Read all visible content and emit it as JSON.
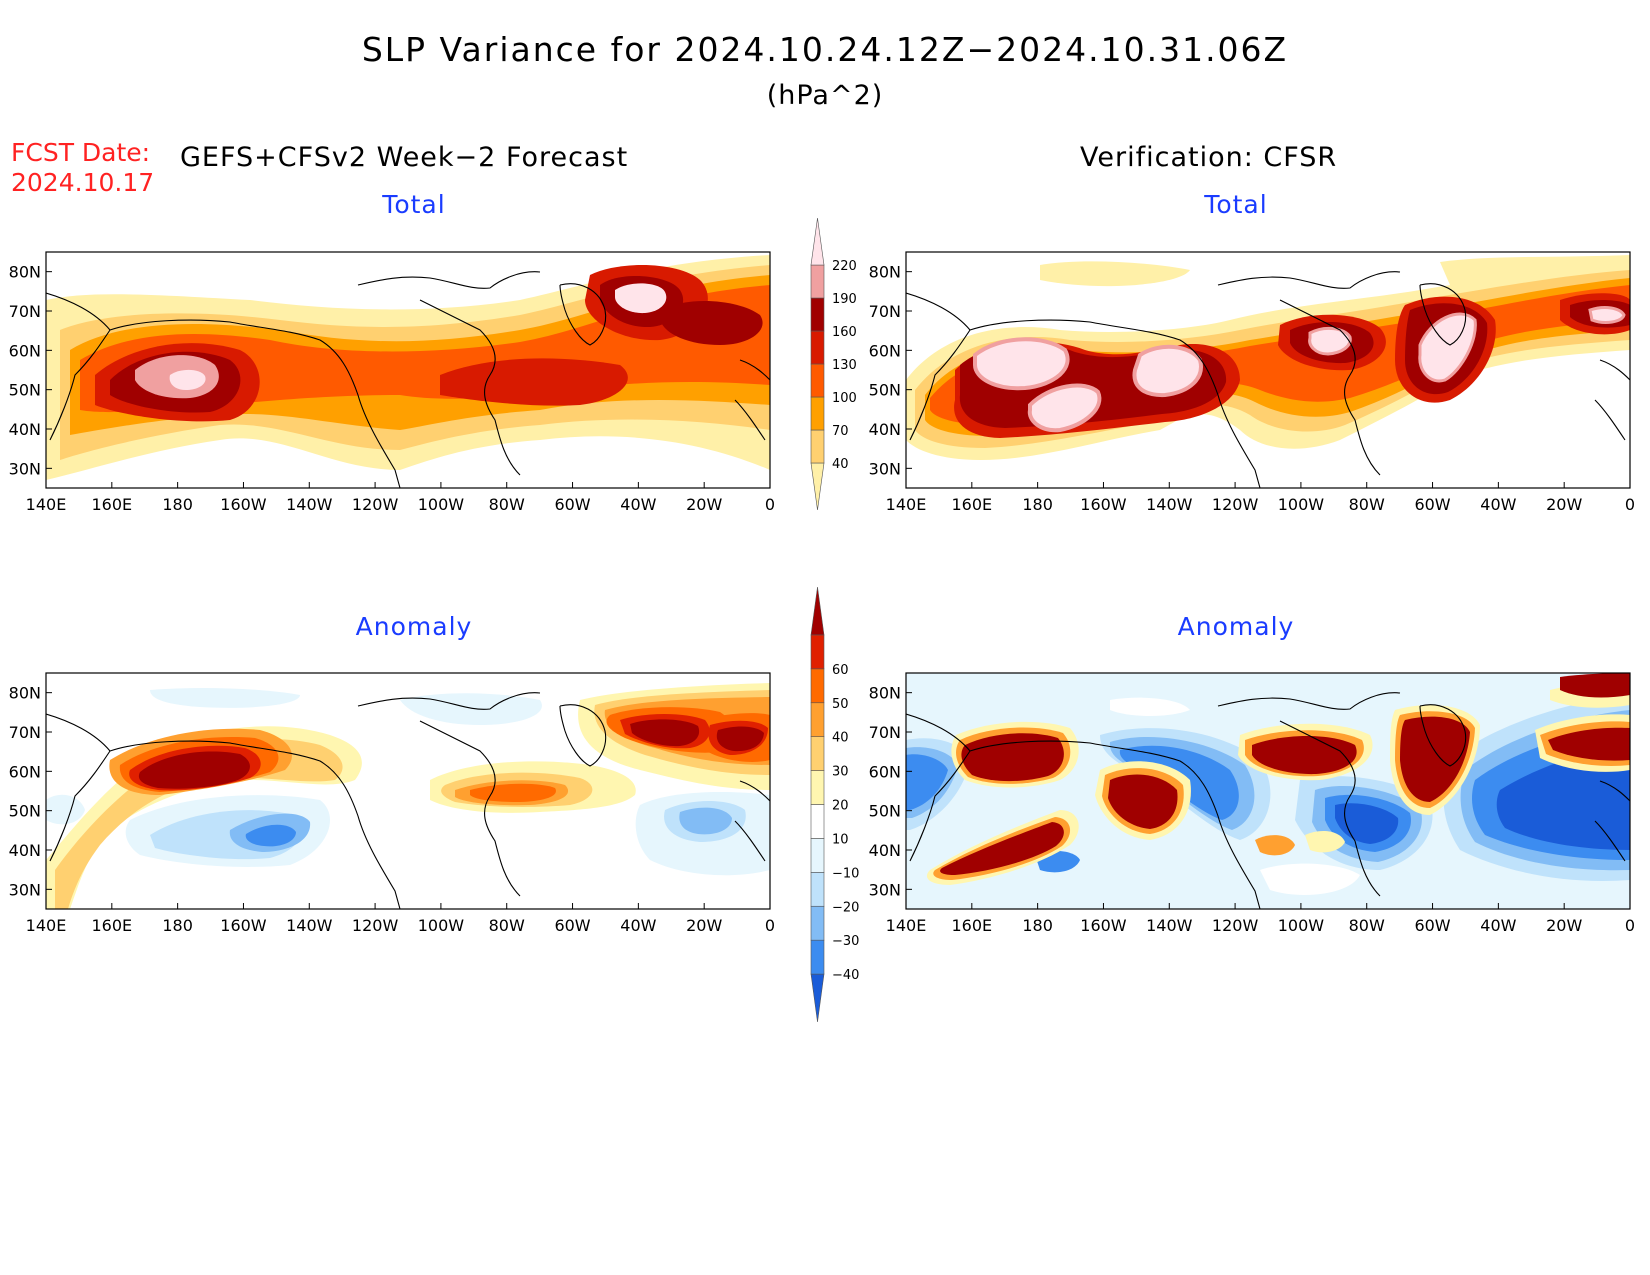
{
  "header": {
    "title": "SLP Variance for 2024.10.24.12Z−2024.10.31.06Z",
    "units": "(hPa^2)",
    "fcst_date_label": "FCST Date:",
    "fcst_date_value": "2024.10.17",
    "forecast_heading": "GEFS+CFSv2 Week−2 Forecast",
    "verification_heading": "Verification: CFSR"
  },
  "panels": {
    "forecast_total_title": "Total",
    "verification_total_title": "Total",
    "forecast_anomaly_title": "Anomaly",
    "verification_anomaly_title": "Anomaly"
  },
  "axes": {
    "lat_labels": [
      "80N",
      "70N",
      "60N",
      "50N",
      "40N",
      "30N"
    ],
    "lon_labels": [
      "140E",
      "160E",
      "180",
      "160W",
      "140W",
      "120W",
      "100W",
      "80W",
      "60W",
      "40W",
      "20W",
      "0"
    ]
  },
  "colorbars": {
    "total": {
      "labels": [
        "40",
        "70",
        "100",
        "130",
        "160",
        "190",
        "220"
      ],
      "colors": [
        "#fff0a8",
        "#ffd070",
        "#ffa000",
        "#ff5a00",
        "#d81a00",
        "#a00000",
        "#f0a0a0",
        "#ffe4ea"
      ]
    },
    "anomaly": {
      "labels": [
        "−40",
        "−30",
        "−20",
        "−10",
        "10",
        "20",
        "30",
        "40",
        "50",
        "60"
      ],
      "colors": [
        "#1a5cd8",
        "#3c8cf0",
        "#82bcf5",
        "#bfe2fb",
        "#e6f6fd",
        "#ffffff",
        "#fff6b0",
        "#ffd070",
        "#ffa030",
        "#ff6a00",
        "#e02000",
        "#a00000"
      ]
    }
  }
}
